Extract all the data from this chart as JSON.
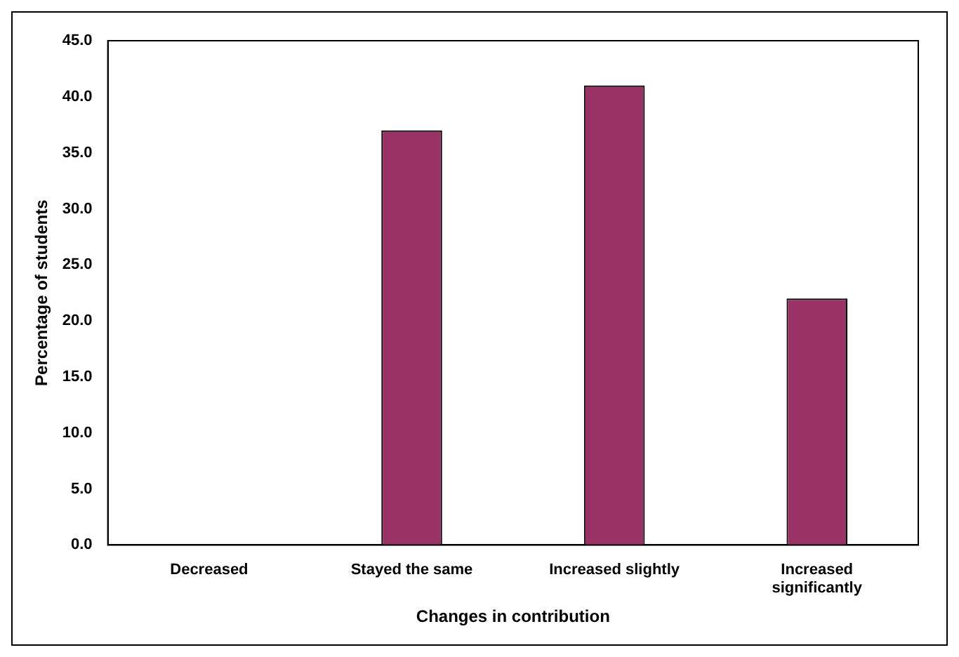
{
  "chart_data": {
    "type": "bar",
    "xlabel": "Changes in contribution",
    "ylabel": "Percentage of students",
    "categories": [
      "Decreased",
      "Stayed the same",
      "Increased slightly",
      "Increased significantly"
    ],
    "values": [
      0,
      37.0,
      41.0,
      22.0
    ],
    "color": "#993366",
    "ylim": [
      0,
      45
    ],
    "yticks": [
      {
        "value": 0,
        "label": "0.0"
      },
      {
        "value": 5,
        "label": "5.0"
      },
      {
        "value": 10,
        "label": "10.0"
      },
      {
        "value": 15,
        "label": "15.0"
      },
      {
        "value": 20,
        "label": "20.0"
      },
      {
        "value": 25,
        "label": "25.0"
      },
      {
        "value": 30,
        "label": "30.0"
      },
      {
        "value": 35,
        "label": "35.0"
      },
      {
        "value": 40,
        "label": "40.0"
      },
      {
        "value": 45,
        "label": "45.0"
      }
    ],
    "grid": false,
    "legend": false
  }
}
